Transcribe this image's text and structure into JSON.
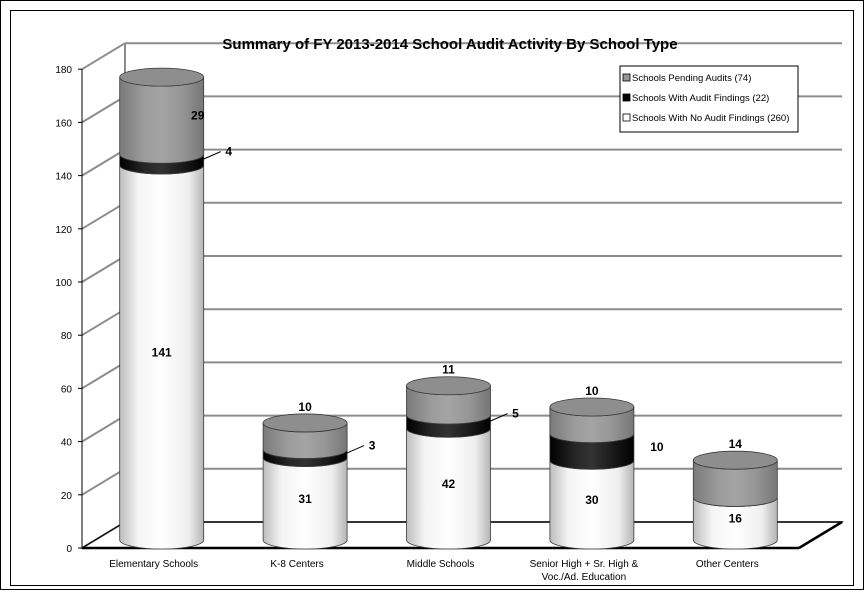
{
  "chart_data": {
    "type": "bar",
    "stacked": true,
    "style": "3d-cylinder",
    "title": "Summary of FY 2013-2014 School Audit Activity By School Type",
    "categories": [
      "Elementary Schools",
      "K-8 Centers",
      "Middle Schools",
      "Senior High + Sr. High & Voc./Ad. Education",
      "Other Centers"
    ],
    "series": [
      {
        "name": "Schools With No Audit Findings (260)",
        "values": [
          141,
          31,
          42,
          30,
          16
        ],
        "color": "#ffffff"
      },
      {
        "name": "Schools With Audit Findings (22)",
        "values": [
          4,
          3,
          5,
          10,
          0
        ],
        "color": "#000000"
      },
      {
        "name": "Schools Pending Audits (74)",
        "values": [
          29,
          10,
          11,
          10,
          14
        ],
        "color": "#969696"
      }
    ],
    "ylim": [
      0,
      180
    ],
    "yticks": [
      0,
      20,
      40,
      60,
      80,
      100,
      120,
      140,
      160,
      180
    ],
    "grid": true,
    "legend": "top-right",
    "legend_order": [
      "Schools Pending Audits (74)",
      "Schools With Audit Findings (22)",
      "Schools With No Audit Findings (260)"
    ]
  }
}
